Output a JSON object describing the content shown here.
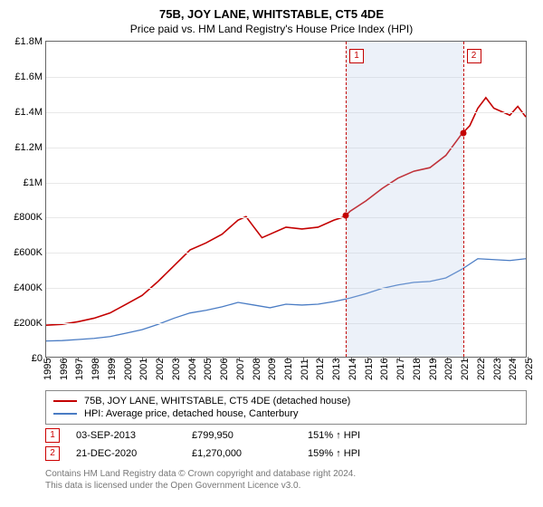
{
  "title": "75B, JOY LANE, WHITSTABLE, CT5 4DE",
  "subtitle": "Price paid vs. HM Land Registry's House Price Index (HPI)",
  "chart": {
    "type": "line",
    "background_color": "#ffffff",
    "grid_color": "#e8e8e8",
    "border_color": "#666666",
    "x": {
      "min": 1995,
      "max": 2025,
      "ticks": [
        1995,
        1996,
        1997,
        1998,
        1999,
        2000,
        2001,
        2002,
        2003,
        2004,
        2005,
        2006,
        2007,
        2008,
        2009,
        2010,
        2011,
        2012,
        2013,
        2014,
        2015,
        2016,
        2017,
        2018,
        2019,
        2020,
        2021,
        2022,
        2023,
        2024,
        2025
      ]
    },
    "y": {
      "min": 0,
      "max": 1800000,
      "tick_step": 200000,
      "labels": [
        "£0",
        "£200K",
        "£400K",
        "£600K",
        "£800K",
        "£1M",
        "£1.2M",
        "£1.4M",
        "£1.6M",
        "£1.8M"
      ]
    },
    "shaded": {
      "from": 2013.67,
      "to": 2020.97,
      "color": "rgba(180,200,230,0.25)"
    },
    "markers": [
      {
        "n": "1",
        "x": 2013.67,
        "y": 799950,
        "dot_color": "#c40000",
        "line_color": "#c40000"
      },
      {
        "n": "2",
        "x": 2020.97,
        "y": 1270000,
        "dot_color": "#c40000",
        "line_color": "#c40000"
      }
    ],
    "series": [
      {
        "name": "property",
        "color": "#c40000",
        "width": 1.6,
        "label": "75B, JOY LANE, WHITSTABLE, CT5 4DE (detached house)",
        "points": [
          [
            1995,
            180000
          ],
          [
            1996,
            185000
          ],
          [
            1997,
            200000
          ],
          [
            1998,
            220000
          ],
          [
            1999,
            250000
          ],
          [
            2000,
            300000
          ],
          [
            2001,
            350000
          ],
          [
            2002,
            430000
          ],
          [
            2003,
            520000
          ],
          [
            2004,
            610000
          ],
          [
            2005,
            650000
          ],
          [
            2006,
            700000
          ],
          [
            2007,
            780000
          ],
          [
            2007.5,
            800000
          ],
          [
            2008,
            740000
          ],
          [
            2008.5,
            680000
          ],
          [
            2009,
            700000
          ],
          [
            2010,
            740000
          ],
          [
            2011,
            730000
          ],
          [
            2012,
            740000
          ],
          [
            2013,
            780000
          ],
          [
            2013.67,
            799950
          ],
          [
            2014,
            830000
          ],
          [
            2015,
            890000
          ],
          [
            2016,
            960000
          ],
          [
            2017,
            1020000
          ],
          [
            2018,
            1060000
          ],
          [
            2019,
            1080000
          ],
          [
            2020,
            1150000
          ],
          [
            2020.97,
            1270000
          ],
          [
            2021.5,
            1320000
          ],
          [
            2022,
            1420000
          ],
          [
            2022.5,
            1480000
          ],
          [
            2023,
            1420000
          ],
          [
            2023.5,
            1400000
          ],
          [
            2024,
            1380000
          ],
          [
            2024.5,
            1430000
          ],
          [
            2025,
            1370000
          ]
        ]
      },
      {
        "name": "hpi",
        "color": "#4a7cc4",
        "width": 1.3,
        "label": "HPI: Average price, detached house, Canterbury",
        "points": [
          [
            1995,
            90000
          ],
          [
            1996,
            92000
          ],
          [
            1997,
            98000
          ],
          [
            1998,
            105000
          ],
          [
            1999,
            115000
          ],
          [
            2000,
            135000
          ],
          [
            2001,
            155000
          ],
          [
            2002,
            185000
          ],
          [
            2003,
            220000
          ],
          [
            2004,
            250000
          ],
          [
            2005,
            265000
          ],
          [
            2006,
            285000
          ],
          [
            2007,
            310000
          ],
          [
            2008,
            295000
          ],
          [
            2009,
            280000
          ],
          [
            2010,
            300000
          ],
          [
            2011,
            295000
          ],
          [
            2012,
            300000
          ],
          [
            2013,
            315000
          ],
          [
            2014,
            335000
          ],
          [
            2015,
            360000
          ],
          [
            2016,
            390000
          ],
          [
            2017,
            410000
          ],
          [
            2018,
            425000
          ],
          [
            2019,
            430000
          ],
          [
            2020,
            450000
          ],
          [
            2021,
            500000
          ],
          [
            2022,
            560000
          ],
          [
            2023,
            555000
          ],
          [
            2024,
            550000
          ],
          [
            2025,
            560000
          ]
        ]
      }
    ],
    "title_fontsize": 13,
    "label_fontsize": 11
  },
  "legend": {
    "rows": [
      {
        "color": "#c40000",
        "label": "75B, JOY LANE, WHITSTABLE, CT5 4DE (detached house)"
      },
      {
        "color": "#4a7cc4",
        "label": "HPI: Average price, detached house, Canterbury"
      }
    ]
  },
  "sales": [
    {
      "n": "1",
      "date": "03-SEP-2013",
      "price": "£799,950",
      "delta": "151% ↑ HPI"
    },
    {
      "n": "2",
      "date": "21-DEC-2020",
      "price": "£1,270,000",
      "delta": "159% ↑ HPI"
    }
  ],
  "footer": {
    "line1": "Contains HM Land Registry data © Crown copyright and database right 2024.",
    "line2": "This data is licensed under the Open Government Licence v3.0."
  }
}
